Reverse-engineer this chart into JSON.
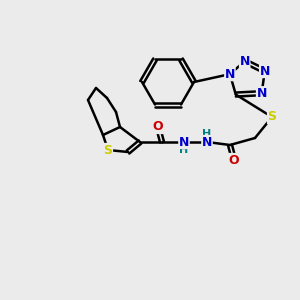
{
  "background_color": "#ebebeb",
  "bond_color": "#000000",
  "atom_colors": {
    "N": "#0000cc",
    "S": "#cccc00",
    "O": "#cc0000",
    "H": "#008080",
    "C": "#000000"
  },
  "figsize": [
    3.0,
    3.0
  ],
  "dpi": 100
}
